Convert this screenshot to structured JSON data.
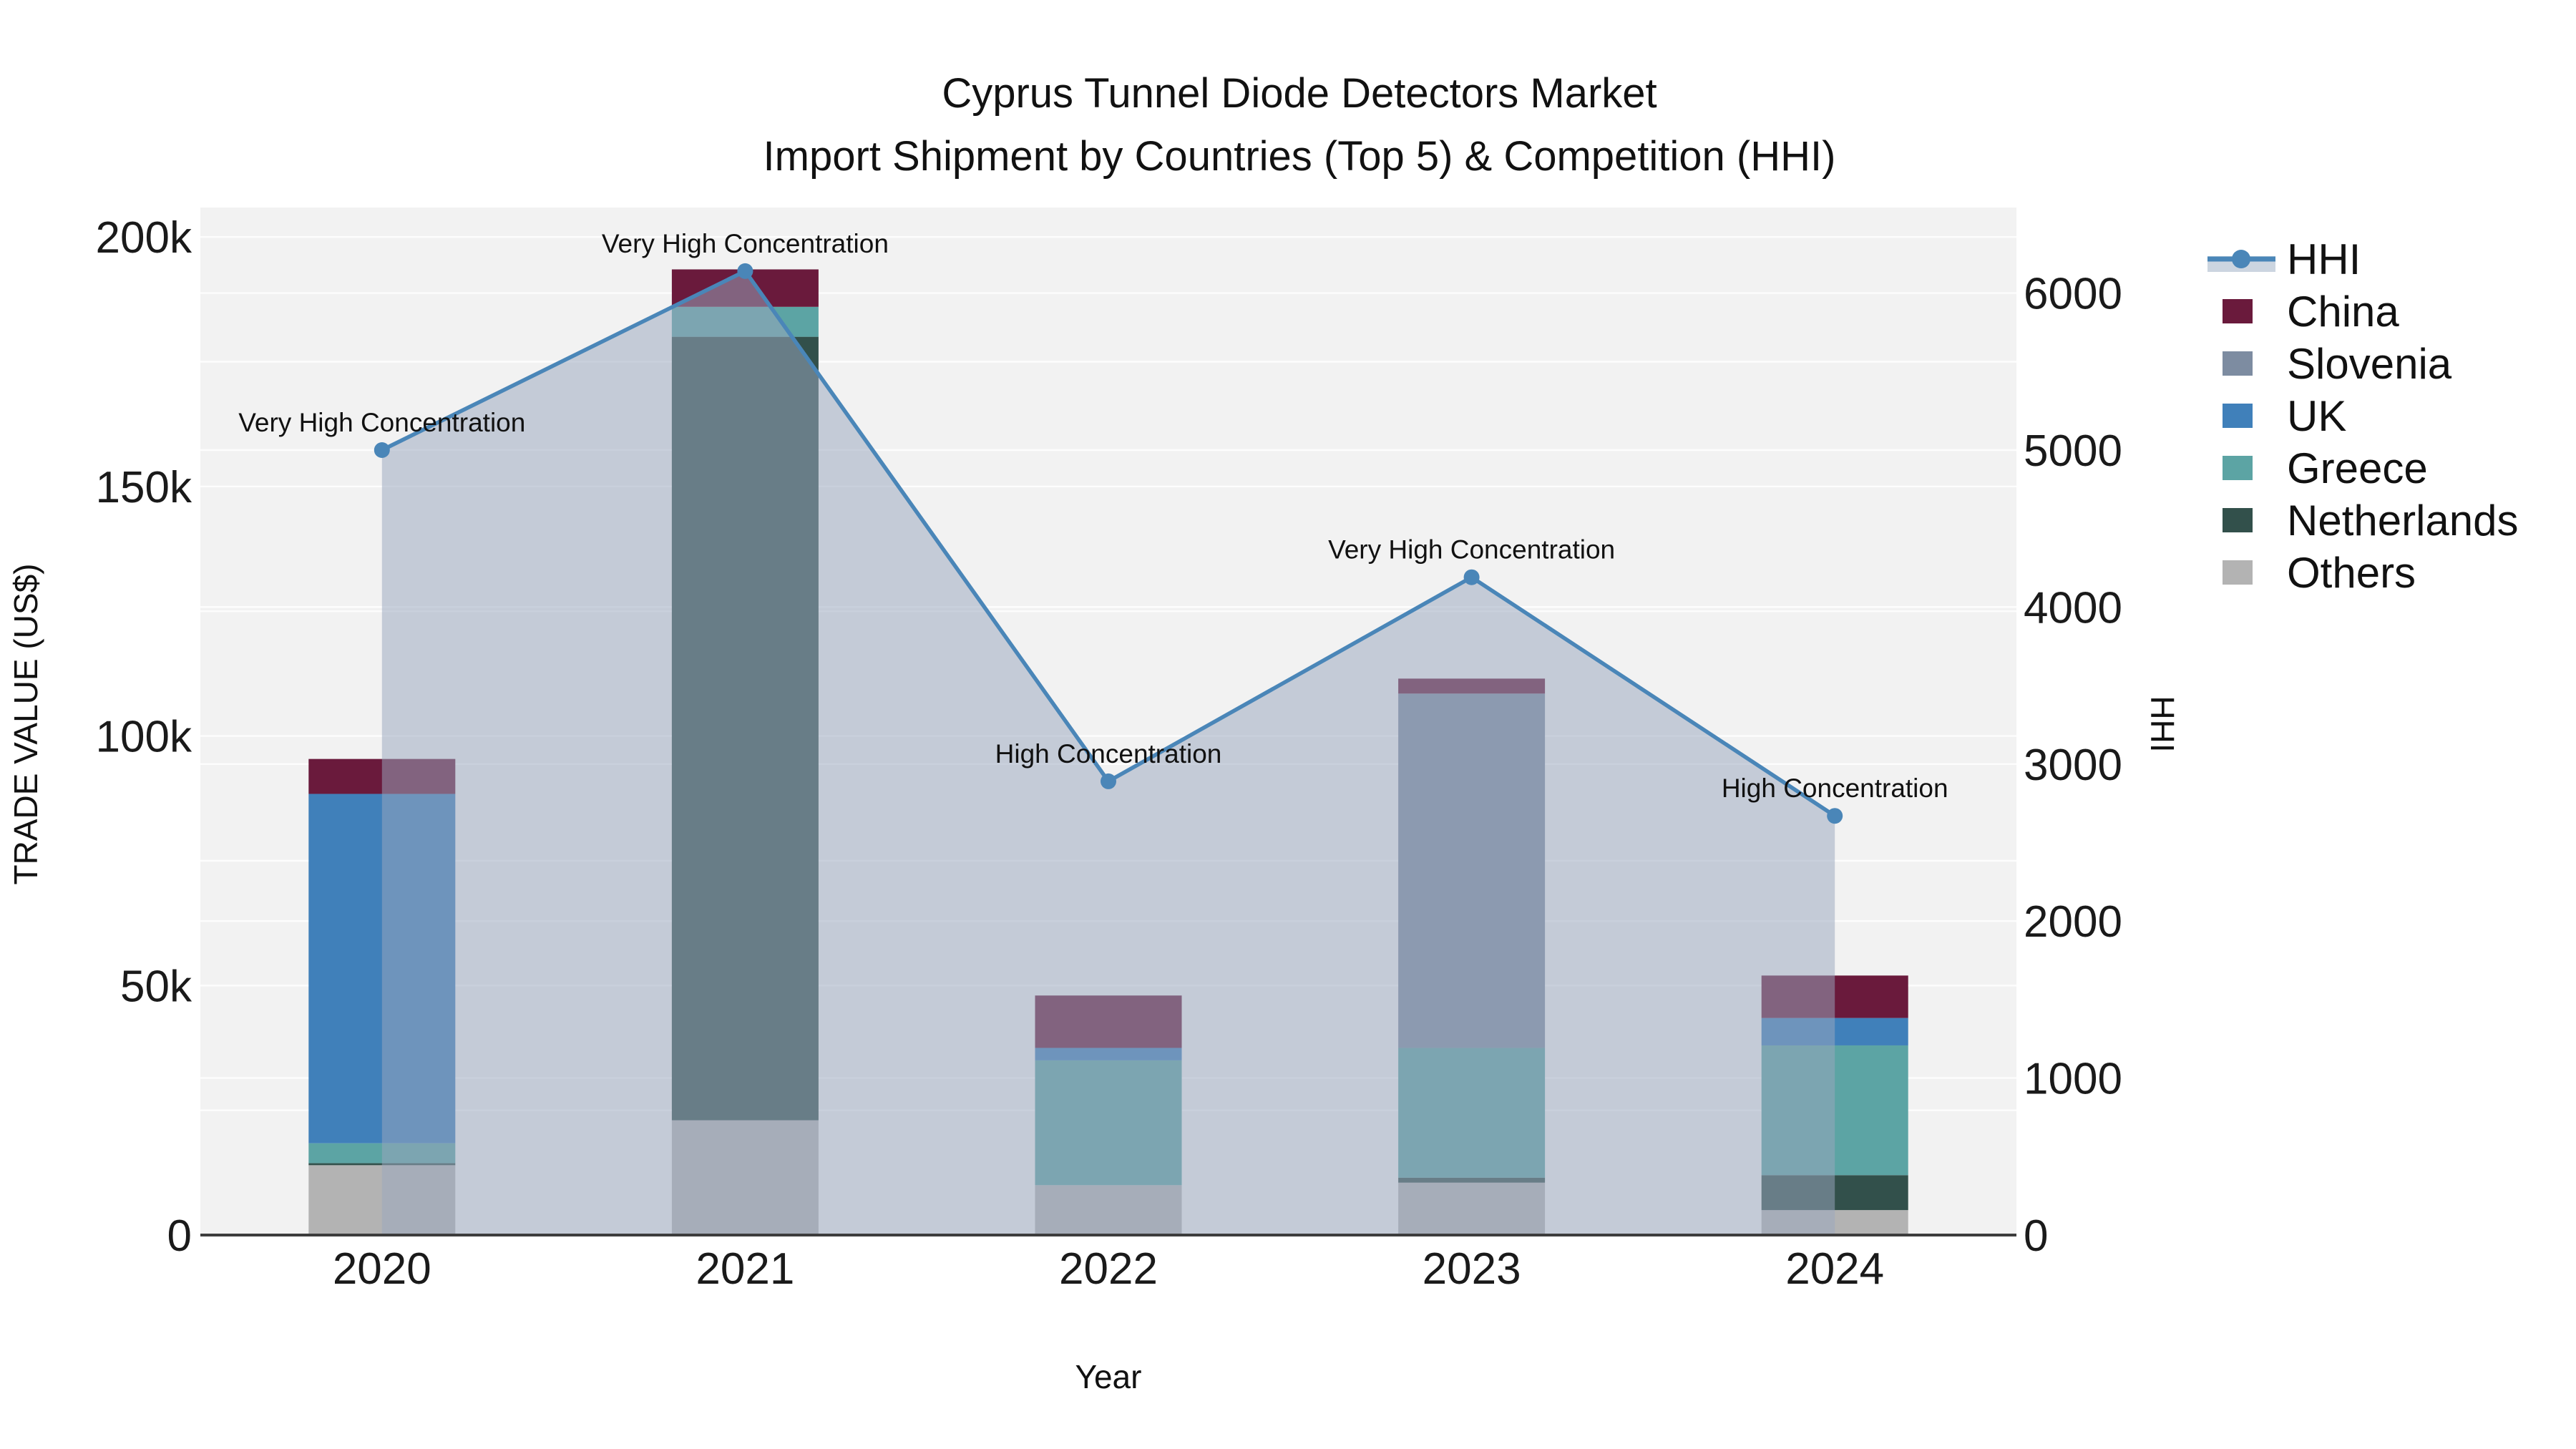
{
  "title": {
    "line1": "Cyprus Tunnel Diode Detectors Market",
    "line2": "Import Shipment by Countries (Top 5) & Competition (HHI)"
  },
  "chart_data": {
    "type": "combo",
    "bar_mode": "stacked",
    "categories": [
      "2020",
      "2021",
      "2022",
      "2023",
      "2024"
    ],
    "x_label": "Year",
    "y_left": {
      "label": "TRADE VALUE (US$)",
      "ticks": [
        {
          "value": 0,
          "text": "0"
        },
        {
          "value": 50000,
          "text": "50k"
        },
        {
          "value": 100000,
          "text": "100k"
        },
        {
          "value": 150000,
          "text": "150k"
        },
        {
          "value": 200000,
          "text": "200k"
        }
      ],
      "grid_step": 25000,
      "max": 205900
    },
    "y_right": {
      "label": "HHI",
      "ticks": [
        {
          "value": 0,
          "text": "0"
        },
        {
          "value": 1000,
          "text": "1000"
        },
        {
          "value": 2000,
          "text": "2000"
        },
        {
          "value": 3000,
          "text": "3000"
        },
        {
          "value": 4000,
          "text": "4000"
        },
        {
          "value": 5000,
          "text": "5000"
        },
        {
          "value": 6000,
          "text": "6000"
        }
      ],
      "grid_step": 1000,
      "max": 6545
    },
    "series": [
      {
        "name": "Others",
        "color": "#b3b3b3",
        "values": [
          14000,
          23000,
          10000,
          10500,
          5000
        ]
      },
      {
        "name": "Netherlands",
        "color": "#32504b",
        "values": [
          400,
          157000,
          0,
          1000,
          7000
        ]
      },
      {
        "name": "Greece",
        "color": "#5ca4a4",
        "values": [
          4000,
          6000,
          25000,
          26000,
          26000
        ]
      },
      {
        "name": "UK",
        "color": "#4080ba",
        "values": [
          70000,
          0,
          2500,
          0,
          5500
        ]
      },
      {
        "name": "Slovenia",
        "color": "#7d8ca1",
        "values": [
          0,
          0,
          0,
          71000,
          0
        ]
      },
      {
        "name": "China",
        "color": "#6a1a3c",
        "values": [
          7000,
          7500,
          10500,
          3000,
          8500
        ]
      }
    ],
    "line_series": {
      "name": "HHI",
      "color": "#4a86b8",
      "area_fill": "rgba(153,167,189,0.52)",
      "values": [
        5000,
        6140,
        2890,
        4190,
        2670
      ]
    },
    "annotations": [
      {
        "category": "2020",
        "text": "Very High Concentration"
      },
      {
        "category": "2021",
        "text": "Very High Concentration"
      },
      {
        "category": "2022",
        "text": "High Concentration"
      },
      {
        "category": "2023",
        "text": "Very High Concentration"
      },
      {
        "category": "2024",
        "text": "High Concentration"
      }
    ],
    "legend": [
      {
        "name": "HHI",
        "type": "line",
        "color": "#4a86b8",
        "band_color": "#ccd5e0"
      },
      {
        "name": "China",
        "type": "square",
        "color": "#6a1a3c"
      },
      {
        "name": "Slovenia",
        "type": "square",
        "color": "#7d8ca1"
      },
      {
        "name": "UK",
        "type": "square",
        "color": "#4080ba"
      },
      {
        "name": "Greece",
        "type": "square",
        "color": "#5ca4a4"
      },
      {
        "name": "Netherlands",
        "type": "square",
        "color": "#32504b"
      },
      {
        "name": "Others",
        "type": "square",
        "color": "#b3b3b3"
      }
    ]
  }
}
